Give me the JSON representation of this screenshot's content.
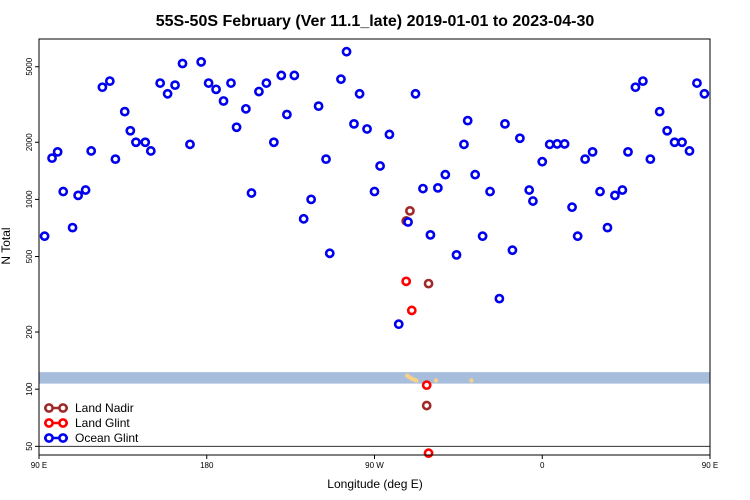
{
  "chart_data": {
    "type": "scatter",
    "title": "55S-50S February (Ver 11.1_late)   2019-01-01 to 2023-04-30",
    "xlabel": "Longitude (deg E)",
    "ylabel": "N Total",
    "xlim": [
      90,
      450
    ],
    "ylim": [
      45,
      7000
    ],
    "yscale": "log",
    "x_ticks": [
      {
        "value": 90,
        "label": "90 E"
      },
      {
        "value": 180,
        "label": "180"
      },
      {
        "value": 270,
        "label": "90 W"
      },
      {
        "value": 360,
        "label": "0"
      },
      {
        "value": 450,
        "label": "90 E"
      }
    ],
    "y_ticks": [
      {
        "value": 50,
        "label": "50"
      },
      {
        "value": 100,
        "label": "100"
      },
      {
        "value": 200,
        "label": "200"
      },
      {
        "value": 500,
        "label": "500"
      },
      {
        "value": 1000,
        "label": "1000"
      },
      {
        "value": 2000,
        "label": "2000"
      },
      {
        "value": 5000,
        "label": "5000"
      }
    ],
    "reference_line": 50,
    "band": {
      "from": 107,
      "to": 123,
      "color": "#a7bddc"
    },
    "band_markers": {
      "color": "#f7d08a",
      "points": [
        [
          287.5,
          118
        ],
        [
          288.5,
          116
        ],
        [
          289.5,
          114
        ],
        [
          290.5,
          113
        ],
        [
          291.5,
          112
        ],
        [
          292.5,
          111
        ],
        [
          303,
          111
        ],
        [
          322,
          111
        ]
      ]
    },
    "legend_position": "bottom-left",
    "series": [
      {
        "name": "Land Nadir",
        "color": "#a02a2a",
        "points": [
          [
            287,
            770
          ],
          [
            289,
            870
          ],
          [
            299,
            360
          ],
          [
            298,
            82
          ]
        ]
      },
      {
        "name": "Land Glint",
        "color": "#ff0000",
        "points": [
          [
            287,
            370
          ],
          [
            290,
            260
          ],
          [
            298,
            105
          ],
          [
            299,
            46
          ]
        ]
      },
      {
        "name": "Ocean Glint",
        "color": "#0000ee",
        "points": [
          [
            93,
            640
          ],
          [
            97,
            1650
          ],
          [
            100,
            1780
          ],
          [
            103,
            1100
          ],
          [
            108,
            710
          ],
          [
            111,
            1050
          ],
          [
            115,
            1120
          ],
          [
            118,
            1800
          ],
          [
            124,
            3900
          ],
          [
            128,
            4200
          ],
          [
            131,
            1630
          ],
          [
            136,
            2900
          ],
          [
            139,
            2300
          ],
          [
            142,
            2000
          ],
          [
            147,
            2000
          ],
          [
            150,
            1800
          ],
          [
            155,
            4100
          ],
          [
            159,
            3600
          ],
          [
            163,
            4000
          ],
          [
            167,
            5200
          ],
          [
            171,
            1950
          ],
          [
            177,
            5300
          ],
          [
            181,
            4100
          ],
          [
            185,
            3800
          ],
          [
            189,
            3300
          ],
          [
            193,
            4100
          ],
          [
            196,
            2400
          ],
          [
            201,
            3000
          ],
          [
            204,
            1080
          ],
          [
            208,
            3700
          ],
          [
            212,
            4100
          ],
          [
            216,
            2000
          ],
          [
            220,
            4500
          ],
          [
            223,
            2800
          ],
          [
            227,
            4500
          ],
          [
            232,
            790
          ],
          [
            236,
            1000
          ],
          [
            240,
            3100
          ],
          [
            244,
            1630
          ],
          [
            246,
            520
          ],
          [
            252,
            4300
          ],
          [
            255,
            6000
          ],
          [
            259,
            2500
          ],
          [
            262,
            3600
          ],
          [
            266,
            2350
          ],
          [
            270,
            1100
          ],
          [
            273,
            1500
          ],
          [
            278,
            2200
          ],
          [
            283,
            220
          ],
          [
            288,
            760
          ],
          [
            292,
            3600
          ],
          [
            296,
            1140
          ],
          [
            300,
            650
          ],
          [
            304,
            1150
          ],
          [
            308,
            1350
          ],
          [
            314,
            510
          ],
          [
            318,
            1950
          ],
          [
            320,
            2600
          ],
          [
            324,
            1350
          ],
          [
            328,
            640
          ],
          [
            332,
            1100
          ],
          [
            337,
            300
          ],
          [
            340,
            2500
          ],
          [
            344,
            540
          ],
          [
            348,
            2100
          ],
          [
            353,
            1120
          ],
          [
            355,
            980
          ],
          [
            360,
            1580
          ],
          [
            364,
            1950
          ],
          [
            368,
            1960
          ],
          [
            372,
            1960
          ],
          [
            376,
            910
          ],
          [
            379,
            640
          ],
          [
            383,
            1630
          ],
          [
            387,
            1780
          ],
          [
            391,
            1100
          ],
          [
            395,
            710
          ],
          [
            399,
            1050
          ],
          [
            403,
            1120
          ],
          [
            406,
            1780
          ],
          [
            410,
            3900
          ],
          [
            414,
            4200
          ],
          [
            418,
            1630
          ],
          [
            423,
            2900
          ],
          [
            427,
            2300
          ],
          [
            431,
            2000
          ],
          [
            435,
            2000
          ],
          [
            439,
            1800
          ],
          [
            443,
            4100
          ],
          [
            447,
            3600
          ]
        ]
      }
    ]
  }
}
